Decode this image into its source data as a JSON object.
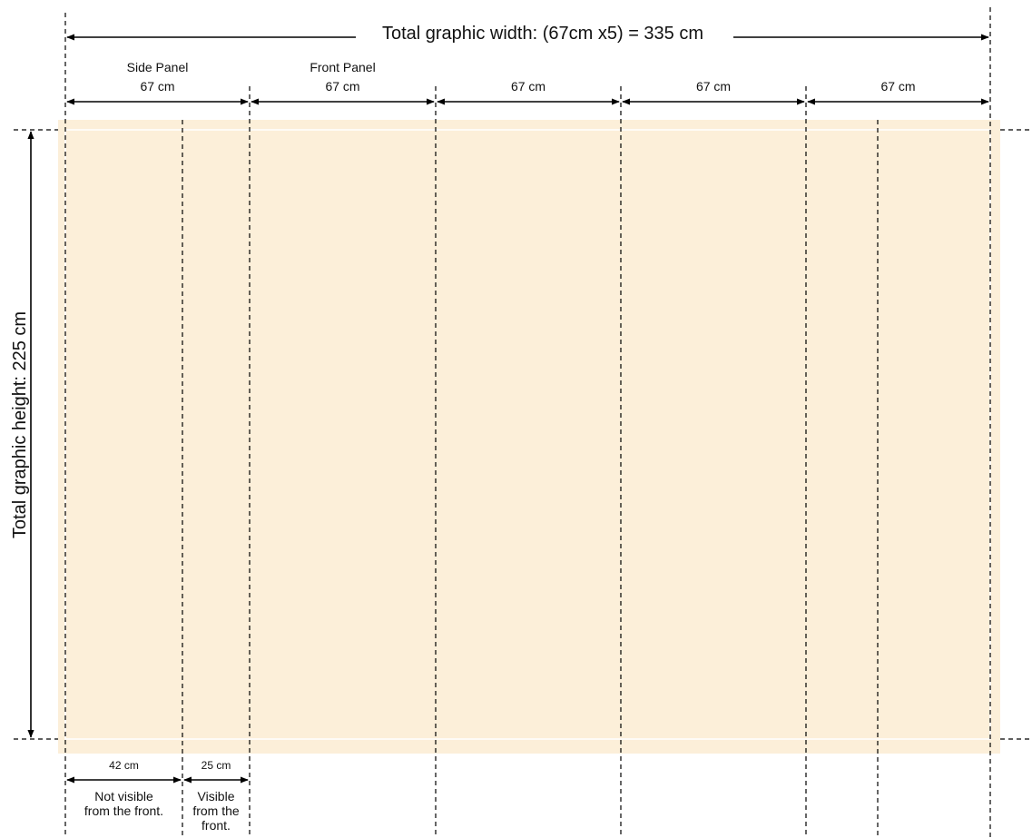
{
  "total_width_label": "Total graphic width: (67cm x5) = 335 cm",
  "total_height_label": "Total graphic height: 225 cm",
  "panels": [
    {
      "title": "Side Panel",
      "width_label": "67 cm"
    },
    {
      "title": "Front Panel",
      "width_label": "67 cm"
    },
    {
      "title": "",
      "width_label": "67 cm"
    },
    {
      "title": "",
      "width_label": "67 cm"
    },
    {
      "title": "",
      "width_label": "67 cm"
    }
  ],
  "side_detail": {
    "hidden": {
      "width_label": "42 cm",
      "note_lines": [
        "Not visible",
        "from the front."
      ]
    },
    "visible": {
      "width_label": "25 cm",
      "note_lines": [
        "Visible",
        "from the",
        "front."
      ]
    }
  },
  "colors": {
    "graphic_fill": "#fcefd9",
    "line": "#000000",
    "trim_line": "#ffffff"
  }
}
